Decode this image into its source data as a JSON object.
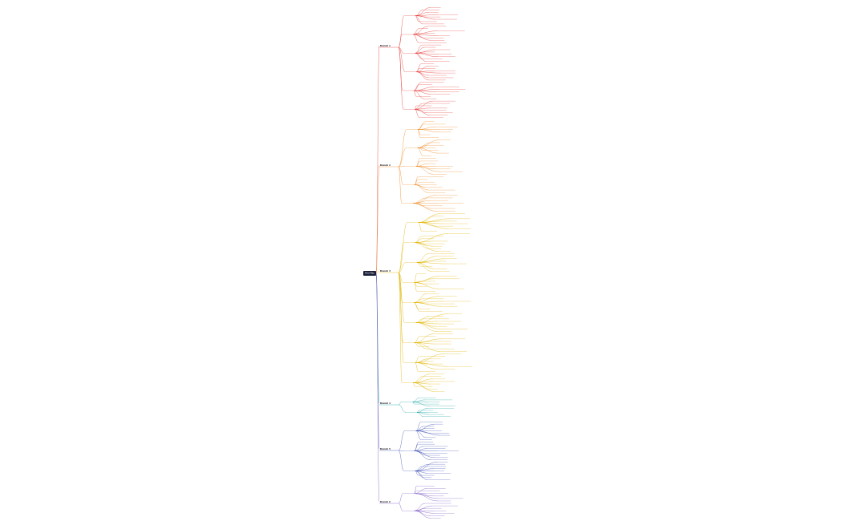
{
  "root": {
    "label": "Mind Map"
  },
  "branches": [
    {
      "label": "Branch 1",
      "color": "#e53935"
    },
    {
      "label": "Branch 2",
      "color": "#f08a24"
    },
    {
      "label": "Branch 3",
      "color": "#e0b400"
    },
    {
      "label": "Branch 4",
      "color": "#17a2a0"
    },
    {
      "label": "Branch 5",
      "color": "#3f51b5"
    },
    {
      "label": "Branch 6",
      "color": "#7e57c2"
    }
  ]
}
